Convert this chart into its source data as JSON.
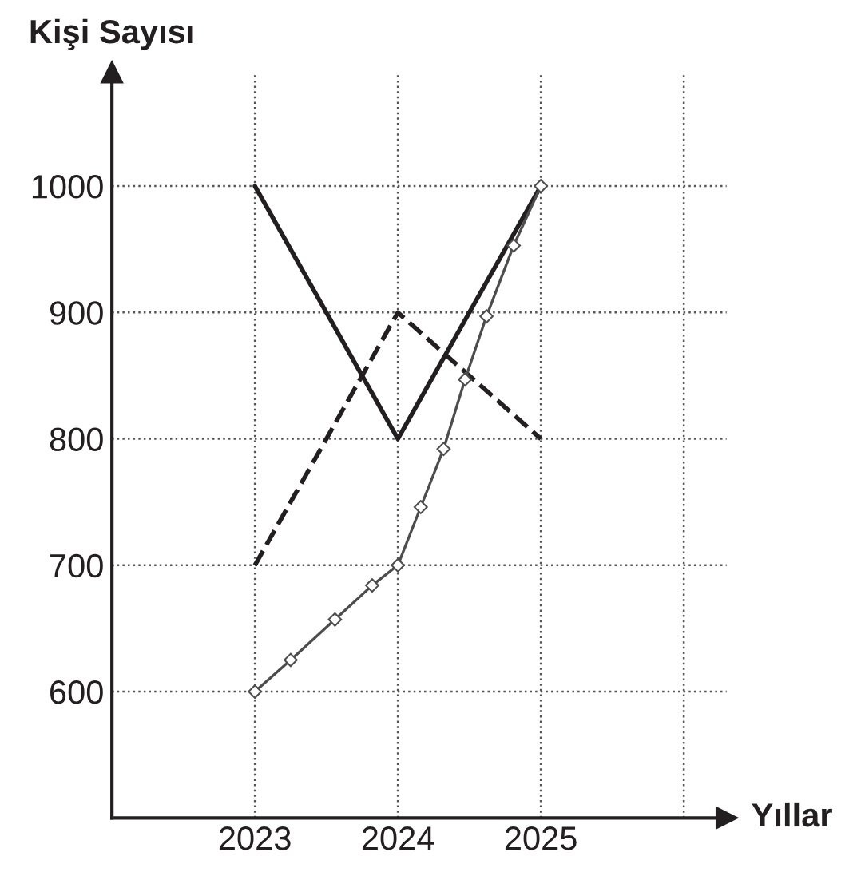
{
  "chart_data": {
    "type": "line",
    "xlabel": "Yıllar",
    "ylabel": "Kişi Sayısı",
    "xlim": [
      2022,
      2026.3
    ],
    "ylim": [
      500,
      1090
    ],
    "xticks": [
      2023,
      2024,
      2025,
      {
        "value": 2026,
        "label": null
      }
    ],
    "yticks": [
      600,
      700,
      800,
      900,
      1000
    ],
    "grid": true,
    "series": [
      {
        "x": [
          2023,
          2024,
          2025
        ],
        "values": [
          1000,
          800,
          1000
        ],
        "color": "#231f20",
        "line_style": "solid",
        "marker": "none"
      },
      {
        "x": [
          2023,
          2024,
          2025
        ],
        "values": [
          700,
          900,
          800
        ],
        "color": "#231f20",
        "line_style": "dashed",
        "marker": "none"
      },
      {
        "x": [
          2023,
          2023.25,
          2023.56,
          2023.82,
          2024,
          2024.16,
          2024.32,
          2024.47,
          2024.62,
          2024.81,
          2025
        ],
        "values": [
          600,
          625,
          657,
          684,
          700,
          746,
          792,
          847,
          897,
          953,
          1000
        ],
        "color": "#4d4d4d",
        "line_style": "solid",
        "marker": "diamond"
      }
    ]
  }
}
